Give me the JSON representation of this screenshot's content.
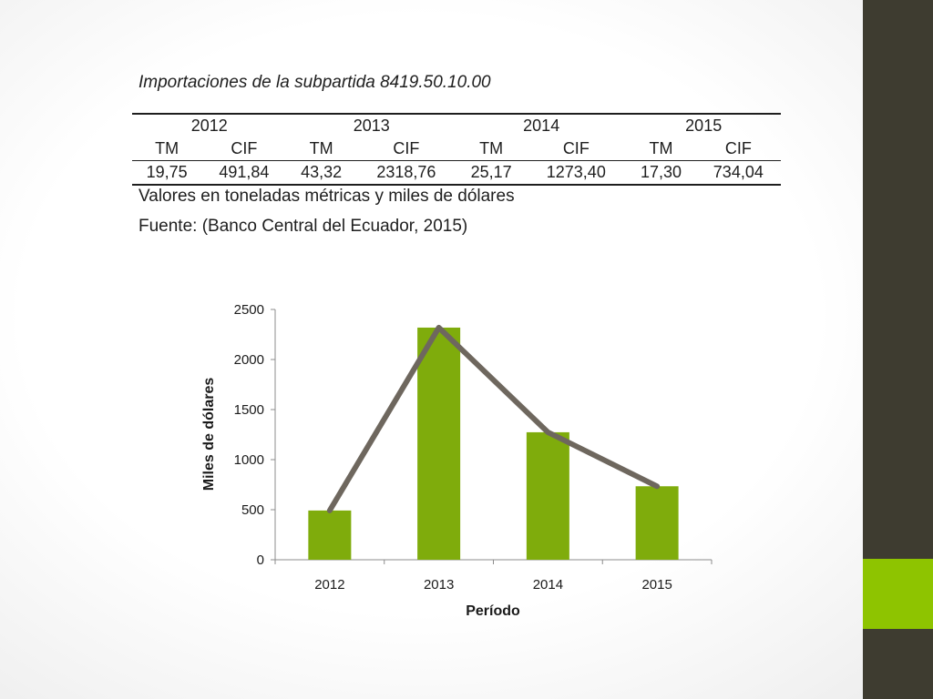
{
  "table": {
    "title": "Importaciones de la subpartida 8419.50.10.00",
    "years": [
      "2012",
      "2013",
      "2014",
      "2015"
    ],
    "sub_headers": [
      "TM",
      "CIF",
      "TM",
      "CIF",
      "TM",
      "CIF",
      "TM",
      "CIF"
    ],
    "values": [
      "19,75",
      "491,84",
      "43,32",
      "2318,76",
      "25,17",
      "1273,40",
      "17,30",
      "734,04"
    ],
    "units_note": "Valores en toneladas métricas y miles de dólares",
    "source_note": "Fuente: (Banco Central del Ecuador, 2015)"
  },
  "chart_data": {
    "type": "bar",
    "categories": [
      "2012",
      "2013",
      "2014",
      "2015"
    ],
    "series": [
      {
        "type": "bar",
        "values": [
          491.84,
          2318.76,
          1273.4,
          734.04
        ],
        "color": "#7fac0c"
      },
      {
        "type": "line",
        "values": [
          491.84,
          2318.76,
          1273.4,
          734.04
        ],
        "color": "#6e675e"
      }
    ],
    "xlabel": "Período",
    "ylabel": "Miles de dólares",
    "ylim": [
      0,
      2500
    ],
    "yticks": [
      "0",
      "500",
      "1000",
      "1500",
      "2000",
      "2500"
    ],
    "grid": false,
    "legend": "none"
  },
  "colors": {
    "sidebar": "#3e3c30",
    "accent": "#8ec400"
  }
}
